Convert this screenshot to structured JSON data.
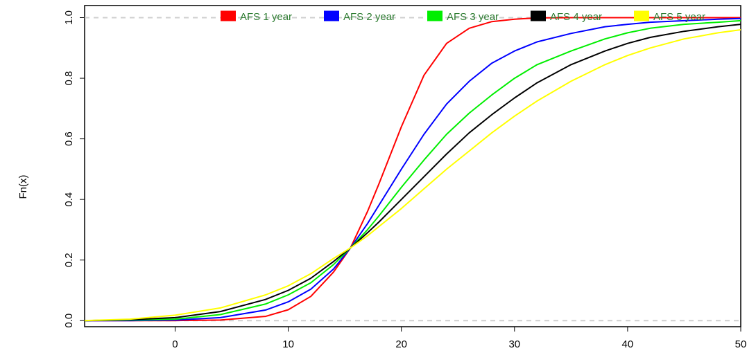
{
  "chart_data": {
    "type": "line",
    "title": "",
    "xlabel": "",
    "ylabel": "Fn(x)",
    "xlim": [
      -8,
      50
    ],
    "ylim": [
      -0.02,
      1.04
    ],
    "x_ticks": [
      0,
      10,
      20,
      30,
      40,
      50
    ],
    "y_ticks": [
      0.0,
      0.2,
      0.4,
      0.6,
      0.8,
      1.0
    ],
    "x_tick_labels": [
      "0",
      "10",
      "20",
      "30",
      "40",
      "50"
    ],
    "y_tick_labels": [
      "0.0",
      "0.2",
      "0.4",
      "0.6",
      "0.8",
      "1.0"
    ],
    "reference_lines": [
      0.0,
      1.0
    ],
    "grid": false,
    "legend_position": "top",
    "x": [
      -8,
      -4,
      0,
      4,
      8,
      10,
      12,
      14,
      15.5,
      17,
      18,
      20,
      22,
      24,
      26,
      28,
      30,
      32,
      35,
      38,
      40,
      42,
      45,
      48,
      50
    ],
    "series": [
      {
        "name": "AFS 1 year",
        "color": "#ff0000",
        "values": [
          0.0,
          0.0,
          0.0,
          0.002,
          0.014,
          0.036,
          0.08,
          0.16,
          0.24,
          0.36,
          0.45,
          0.64,
          0.81,
          0.915,
          0.965,
          0.987,
          0.995,
          0.999,
          1.0,
          1.0,
          1.0,
          1.0,
          1.0,
          1.0,
          1.0
        ]
      },
      {
        "name": "AFS 2 year",
        "color": "#0000ff",
        "values": [
          0.0,
          0.0,
          0.002,
          0.01,
          0.035,
          0.062,
          0.104,
          0.17,
          0.24,
          0.32,
          0.38,
          0.5,
          0.615,
          0.715,
          0.79,
          0.85,
          0.89,
          0.92,
          0.948,
          0.97,
          0.978,
          0.985,
          0.99,
          0.995,
          0.997
        ]
      },
      {
        "name": "AFS 3 year",
        "color": "#00ee00",
        "values": [
          0.0,
          0.002,
          0.005,
          0.02,
          0.055,
          0.085,
          0.125,
          0.185,
          0.24,
          0.3,
          0.345,
          0.44,
          0.53,
          0.615,
          0.685,
          0.745,
          0.8,
          0.845,
          0.89,
          0.93,
          0.95,
          0.965,
          0.978,
          0.985,
          0.99
        ]
      },
      {
        "name": "AFS 4 year",
        "color": "#000000",
        "values": [
          0.0,
          0.003,
          0.01,
          0.03,
          0.07,
          0.1,
          0.14,
          0.195,
          0.24,
          0.29,
          0.325,
          0.4,
          0.475,
          0.55,
          0.62,
          0.68,
          0.735,
          0.785,
          0.845,
          0.89,
          0.915,
          0.935,
          0.955,
          0.97,
          0.978
        ]
      },
      {
        "name": "AFS 5 year",
        "color": "#ffff00",
        "values": [
          0.0,
          0.005,
          0.018,
          0.042,
          0.085,
          0.115,
          0.155,
          0.205,
          0.24,
          0.28,
          0.31,
          0.37,
          0.435,
          0.5,
          0.56,
          0.62,
          0.675,
          0.725,
          0.79,
          0.845,
          0.875,
          0.9,
          0.93,
          0.95,
          0.96
        ]
      }
    ]
  }
}
